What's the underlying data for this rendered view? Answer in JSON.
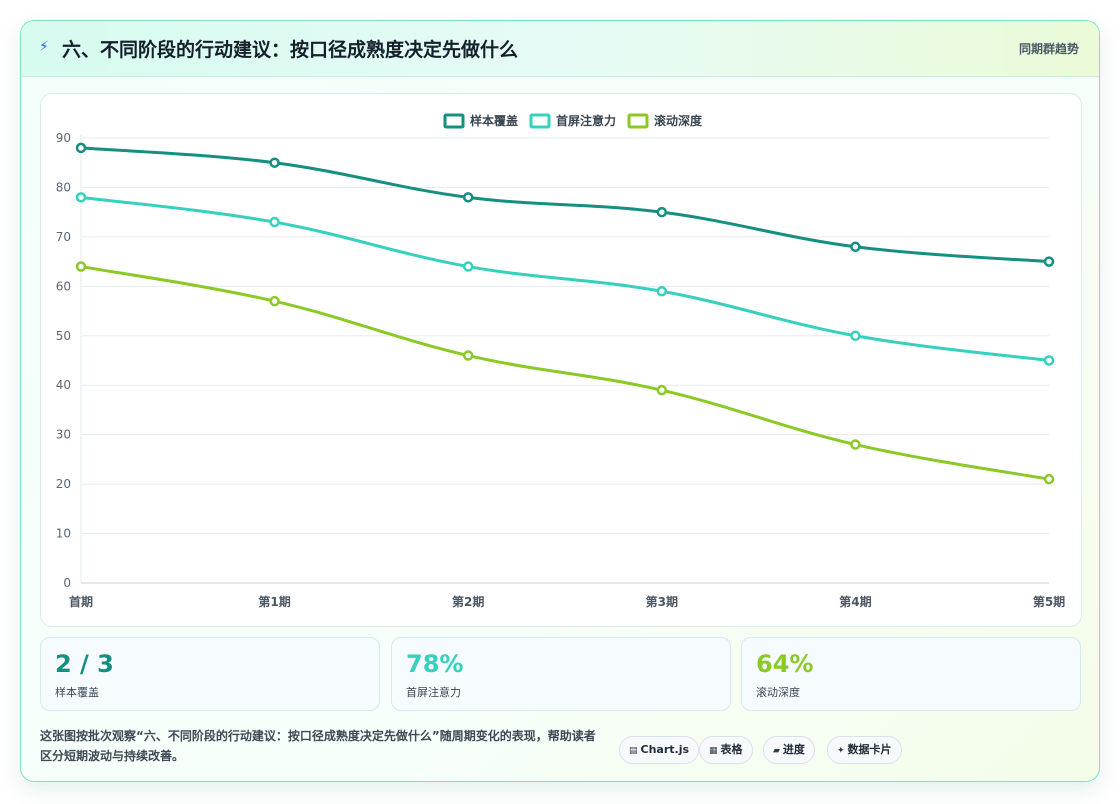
{
  "header": {
    "icon": "lightning-icon",
    "title": "六、不同阶段的行动建议：按口径成熟度决定先做什么",
    "tag": "同期群趋势"
  },
  "chart_data": {
    "type": "line",
    "categories": [
      "首期",
      "第1期",
      "第2期",
      "第3期",
      "第4期",
      "第5期"
    ],
    "series": [
      {
        "name": "样本覆盖",
        "color": "#148f80",
        "values": [
          88,
          85,
          78,
          75,
          68,
          65
        ]
      },
      {
        "name": "首屏注意力",
        "color": "#35d0be",
        "values": [
          78,
          73,
          64,
          59,
          50,
          45
        ]
      },
      {
        "name": "滚动深度",
        "color": "#8ac926",
        "values": [
          64,
          57,
          46,
          39,
          28,
          21
        ]
      }
    ],
    "ylim": [
      0,
      90
    ],
    "yticks": [
      0,
      10,
      20,
      30,
      40,
      50,
      60,
      70,
      80,
      90
    ],
    "grid": true,
    "legend": "top-center"
  },
  "kpis": [
    {
      "value": "2 / 3",
      "label": "样本覆盖",
      "color": "#148f80"
    },
    {
      "value": "78%",
      "label": "首屏注意力",
      "color": "#35d0be"
    },
    {
      "value": "64%",
      "label": "滚动深度",
      "color": "#8ac926"
    }
  ],
  "footnote": "这张图按批次观察“六、不同阶段的行动建议：按口径成熟度决定先做什么”随周期变化的表现，帮助读者区分短期波动与持续改善。",
  "pills": [
    {
      "icon": "▤",
      "label": "Chart.js"
    },
    {
      "icon": "▦",
      "label": "表格"
    },
    {
      "icon": "▰",
      "label": "进度"
    },
    {
      "icon": "✦",
      "label": "数据卡片"
    }
  ]
}
